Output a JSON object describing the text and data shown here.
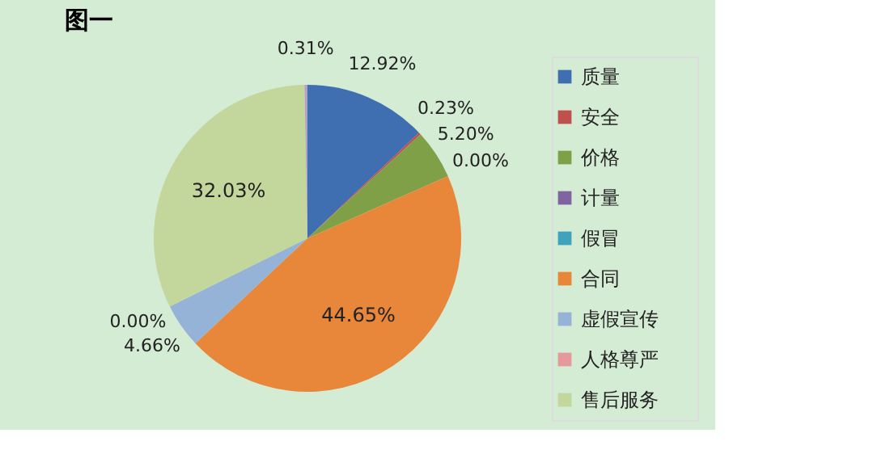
{
  "chart_data": {
    "type": "pie",
    "title": "图一",
    "categories": [
      "质量",
      "安全",
      "价格",
      "计量",
      "假冒",
      "合同",
      "虚假宣传",
      "人格尊严",
      "售后服务",
      null
    ],
    "values": [
      12.92,
      0.23,
      5.2,
      0.0,
      0.0,
      44.65,
      4.66,
      0.0,
      32.03,
      0.31
    ],
    "colors": [
      "#3f6fb0",
      "#c0504d",
      "#7fa047",
      "#8064a2",
      "#3fa3c0",
      "#e8873a",
      "#95b3d7",
      "#e6999a",
      "#c3d69b",
      "#b3a2c7"
    ],
    "value_labels": [
      "12.92%",
      "0.23%",
      "5.20%",
      "0.00%",
      null,
      "44.65%",
      "4.66%",
      "0.00%",
      "32.03%",
      "0.31%"
    ],
    "legend": "right"
  }
}
